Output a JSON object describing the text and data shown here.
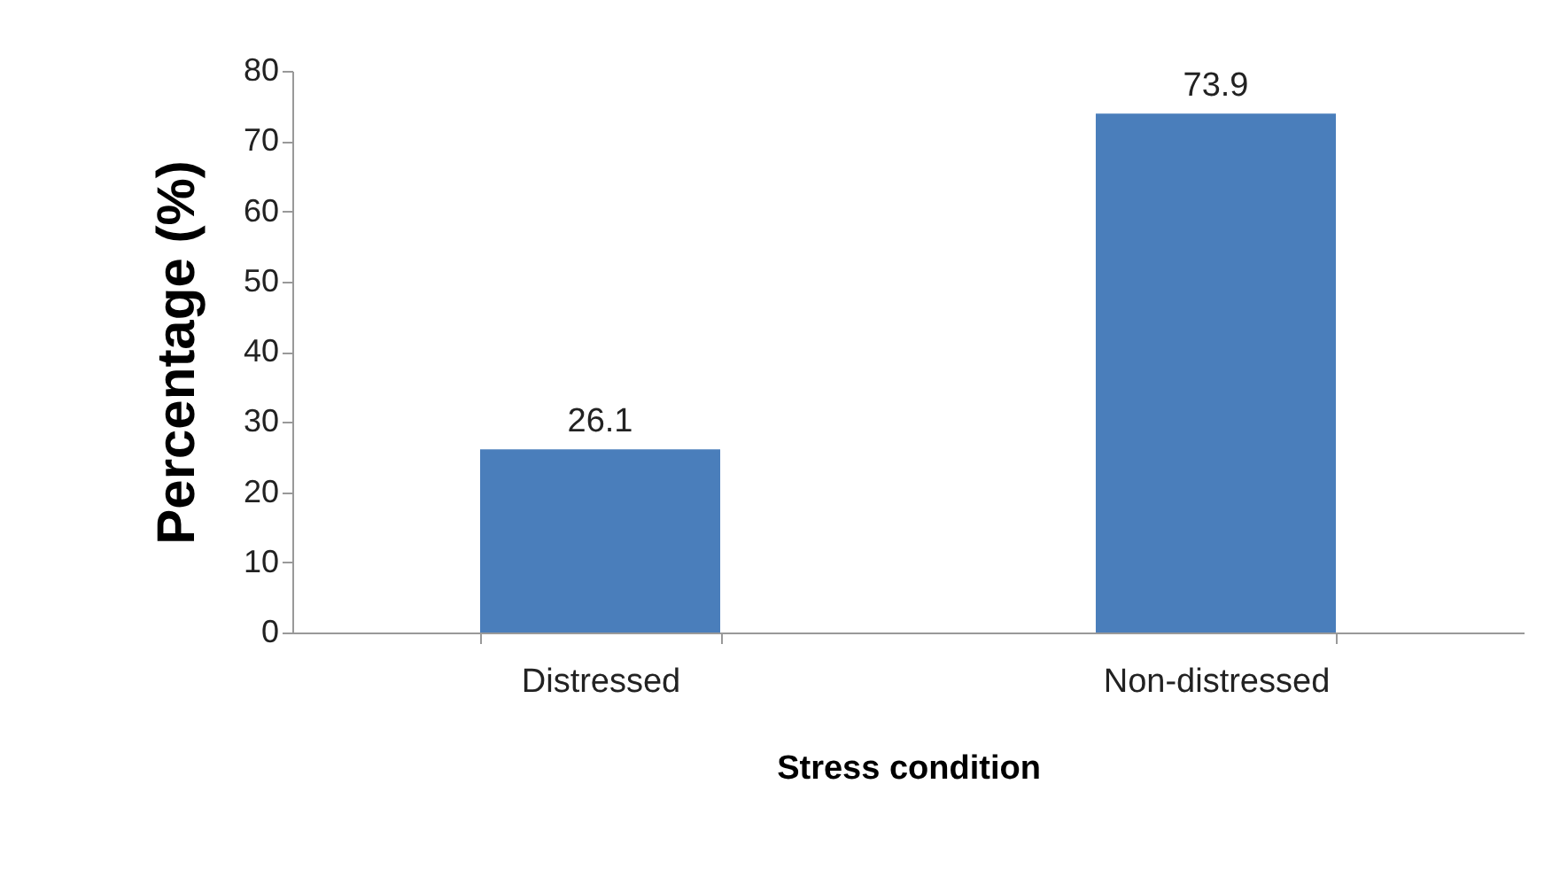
{
  "chart_data": {
    "type": "bar",
    "xlabel": "Stress condition",
    "ylabel": "Percentage (%)",
    "categories": [
      "Distressed",
      "Non-distressed"
    ],
    "values": [
      26.1,
      73.9
    ],
    "color": "#4a7ebb",
    "ylim": [
      0,
      80
    ],
    "yticks": [
      0,
      10,
      20,
      30,
      40,
      50,
      60,
      70,
      80
    ],
    "grid": false,
    "data_labels": true
  }
}
